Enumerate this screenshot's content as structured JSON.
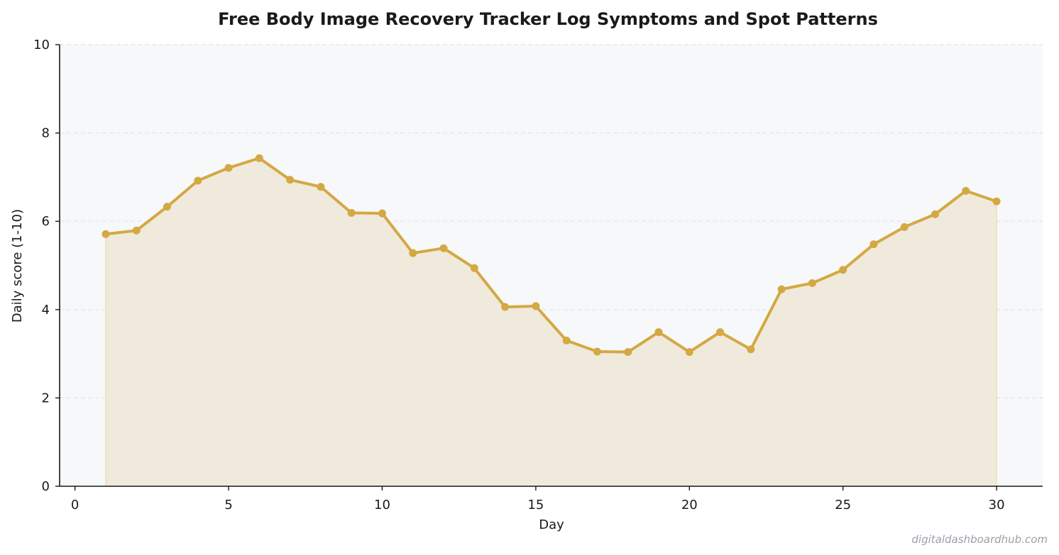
{
  "colors": {
    "line": "#d4a843",
    "area": "#f0eadc",
    "plot_background": "#f7f8fa",
    "grid": "#e2e4e6",
    "axis": "#1a1a1a"
  },
  "watermark": "digitaldashboardhub.com",
  "chart_data": {
    "type": "area",
    "title": "Free Body Image Recovery Tracker  Log Symptoms and Spot Patterns",
    "xlabel": "Day",
    "ylabel": "Daily score (1-10)",
    "xlim": [
      -0.5,
      31.5
    ],
    "ylim": [
      0,
      10
    ],
    "xticks": [
      0,
      5,
      10,
      15,
      20,
      25,
      30
    ],
    "yticks": [
      0,
      2,
      4,
      6,
      8,
      10
    ],
    "grid": "horizontal dashed",
    "x": [
      1,
      2,
      3,
      4,
      5,
      6,
      7,
      8,
      9,
      10,
      11,
      12,
      13,
      14,
      15,
      16,
      17,
      18,
      19,
      20,
      21,
      22,
      23,
      24,
      25,
      26,
      27,
      28,
      29,
      30
    ],
    "values": [
      5.71,
      5.79,
      6.33,
      6.92,
      7.21,
      7.43,
      6.94,
      6.78,
      6.19,
      6.18,
      5.28,
      5.39,
      4.94,
      4.06,
      4.08,
      3.3,
      3.05,
      3.04,
      3.49,
      3.04,
      3.49,
      3.1,
      4.46,
      4.6,
      4.9,
      5.48,
      5.87,
      6.16,
      6.69,
      6.45
    ]
  }
}
